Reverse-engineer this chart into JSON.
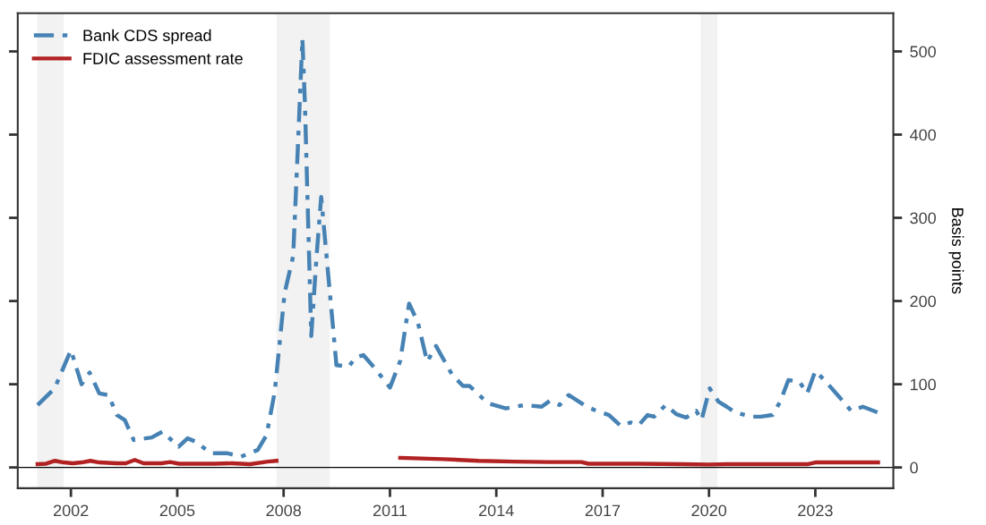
{
  "chart_data": {
    "type": "line",
    "ylabel": "Basis points",
    "xlim": [
      2000.5,
      2025.2
    ],
    "xticks": [
      2002,
      2005,
      2008,
      2011,
      2014,
      2017,
      2020,
      2023
    ],
    "ylim": [
      -25,
      546
    ],
    "yticks": [
      0,
      100,
      200,
      300,
      400,
      500
    ],
    "grid": false,
    "legend": "top left",
    "bands": [
      {
        "axis": "x",
        "from": 2001.05,
        "to": 2001.8,
        "color": "#f2f2f2"
      },
      {
        "axis": "x",
        "from": 2007.8,
        "to": 2009.3,
        "color": "#f2f2f2"
      },
      {
        "axis": "x",
        "from": 2019.76,
        "to": 2020.24,
        "color": "#f2f2f2"
      }
    ],
    "ref_lines": [
      {
        "axis": "y",
        "value": 0,
        "color": "#000000",
        "line_style": "solid"
      }
    ],
    "series": [
      {
        "name": "Bank CDS spread",
        "color": "#4682b4",
        "line_style": "dashed",
        "x": [
          2001.06,
          2001.54,
          2002.0,
          2002.3,
          2002.53,
          2002.8,
          2003.06,
          2003.3,
          2003.52,
          2003.77,
          2004.28,
          2004.58,
          2005.04,
          2005.29,
          2005.52,
          2005.95,
          2006.42,
          2006.8,
          2007.27,
          2007.52,
          2007.75,
          2008.03,
          2008.27,
          2008.4,
          2008.53,
          2008.6,
          2008.78,
          2008.93,
          2009.06,
          2009.49,
          2009.84,
          2010.02,
          2010.25,
          2010.58,
          2011.0,
          2011.29,
          2011.54,
          2011.79,
          2012.05,
          2012.3,
          2012.76,
          2013.06,
          2013.24,
          2013.77,
          2014.27,
          2014.8,
          2015.28,
          2015.51,
          2015.79,
          2016.04,
          2016.55,
          2016.83,
          2017.18,
          2017.51,
          2017.79,
          2018.02,
          2018.27,
          2018.45,
          2018.78,
          2019.08,
          2019.36,
          2019.64,
          2019.79,
          2020.02,
          2020.27,
          2020.5,
          2020.75,
          2021.2,
          2021.46,
          2021.79,
          2022.01,
          2022.24,
          2022.55,
          2022.77,
          2023.0,
          2023.3,
          2023.69,
          2024.01,
          2024.34,
          2024.77
        ],
        "values": [
          75,
          95,
          141,
          100,
          114,
          89,
          87,
          63,
          57,
          33,
          36,
          43,
          25,
          35,
          31,
          17,
          17,
          13,
          21,
          39,
          91,
          210,
          254,
          383,
          515,
          439,
          158,
          254,
          325,
          123,
          121,
          132,
          135,
          119,
          96,
          128,
          197,
          174,
          127,
          146,
          111,
          98,
          98,
          77,
          71,
          75,
          73,
          80,
          75,
          87,
          73,
          68,
          63,
          50,
          54,
          51,
          63,
          61,
          75,
          64,
          60,
          68,
          57,
          95,
          79,
          73,
          66,
          61,
          61,
          63,
          79,
          105,
          103,
          89,
          116,
          103,
          84,
          68,
          73,
          66
        ]
      },
      {
        "name": "FDIC assessment rate",
        "color": "#b22222",
        "line_style": "solid",
        "x": [
          2001.06,
          2001.3,
          2001.55,
          2001.8,
          2002.05,
          2002.3,
          2002.55,
          2002.8,
          2003.3,
          2003.55,
          2003.8,
          2004.05,
          2004.55,
          2004.8,
          2005.05,
          2005.55,
          2006.05,
          2006.55,
          2006.8,
          2007.05,
          2007.55,
          2007.8,
          2009.5,
          2011.29,
          2012.5,
          2013.5,
          2014.5,
          2015.5,
          2016.4,
          2016.6,
          2018.0,
          2020.0,
          2020.5,
          2021.0,
          2022.8,
          2023.0,
          2024.77
        ],
        "values": [
          4,
          4.5,
          8,
          6,
          5,
          6,
          8,
          6,
          5,
          5,
          9,
          5,
          5,
          6.5,
          4.5,
          4.5,
          4.5,
          5,
          4.5,
          4,
          7,
          8,
          null,
          11.5,
          10,
          8,
          7,
          6.5,
          6.5,
          4.5,
          4.5,
          3.5,
          4,
          4,
          4,
          6,
          6
        ]
      }
    ]
  }
}
